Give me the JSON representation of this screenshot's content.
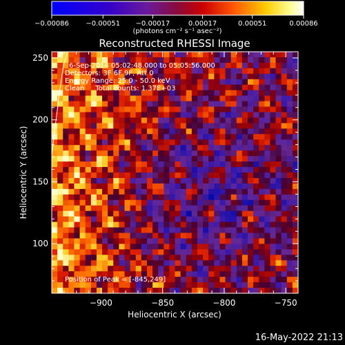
{
  "chart_data": {
    "type": "heatmap",
    "title": "Reconstructed RHESSI Image",
    "xlabel": "Heliocentric X (arcsec)",
    "ylabel": "Heliocentric Y (arcsec)",
    "xlim": [
      -940,
      -740
    ],
    "ylim": [
      60,
      255
    ],
    "x_ticks": [
      -900,
      -850,
      -800,
      -750
    ],
    "y_ticks": [
      100,
      150,
      200,
      250
    ],
    "x_tick_labels": [
      "−900",
      "−850",
      "−800",
      "−750"
    ],
    "y_tick_labels": [
      "100",
      "150",
      "200",
      "250"
    ],
    "colorbar": {
      "range": [
        -0.00086,
        0.00086
      ],
      "ticks": [
        -0.00086,
        -0.00051,
        -0.00017,
        0.00017,
        0.00051,
        0.00086
      ],
      "tick_labels": [
        "−0.00086",
        "−0.00051",
        "−0.00017",
        "0.00017",
        "0.00051",
        "0.00086"
      ],
      "unit_label": "(photons cm⁻² s⁻¹ asec⁻²)"
    },
    "annotations": [
      "6-Sep-2014 05:02:48.000 to 05:05:56.000",
      "Detectors: 3F 6F 9F, Att 0",
      "Energy Range: 25.0 - 50.0 keV",
      "Clean     Total counts: 1.37E+03"
    ],
    "peak_label": "Position of Peak = [-845,249]",
    "peak_position": [
      -845,
      249
    ],
    "colormap": "prism-like (blue-purple-red-orange-yellow-white)",
    "grid": false
  },
  "footer": {
    "timestamp": "16-May-2022 21:13"
  }
}
